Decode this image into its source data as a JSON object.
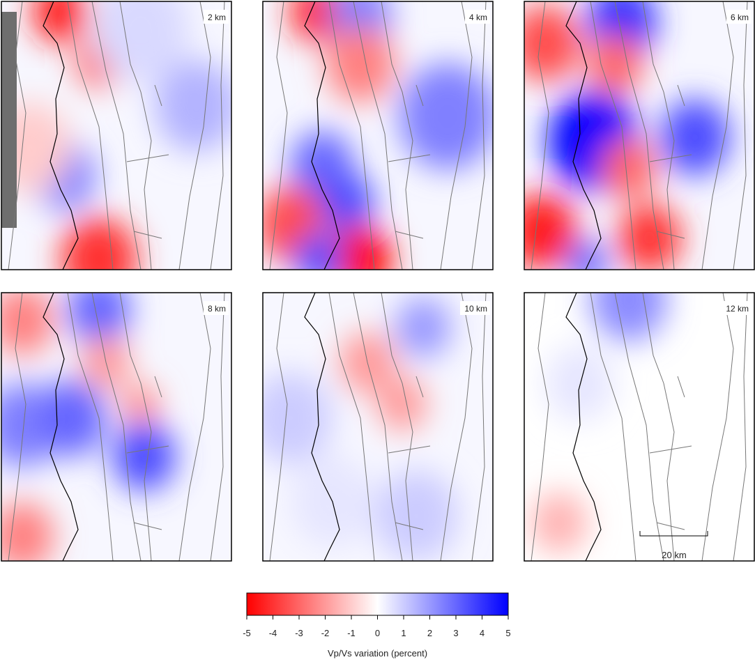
{
  "panels": [
    {
      "label": "2 km"
    },
    {
      "label": "4 km"
    },
    {
      "label": "6 km"
    },
    {
      "label": "8 km"
    },
    {
      "label": "10 km"
    },
    {
      "label": "12 km"
    }
  ],
  "scale_bar": {
    "label": "20 km"
  },
  "colorbar": {
    "type": "colorbar",
    "colors": [
      "#ff0000",
      "#ffffff",
      "#0000ff"
    ],
    "xlim": [
      -5,
      5
    ],
    "xticks": [
      -5,
      -4,
      -3,
      -2,
      -1,
      0,
      1,
      2,
      3,
      4,
      5
    ],
    "label": "Vp/Vs variation (percent)"
  }
}
